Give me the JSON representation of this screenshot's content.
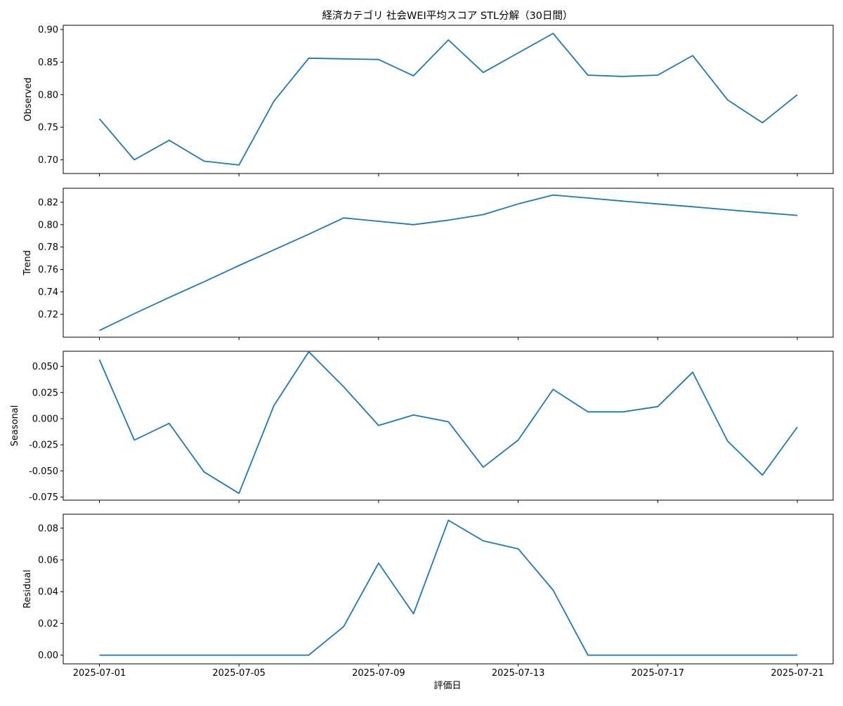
{
  "figure": {
    "title": "経済カテゴリ 社会WEI平均スコア STL分解（30日間）",
    "xlabel": "評価日"
  },
  "chart_data": {
    "type": "line",
    "title": "経済カテゴリ 社会WEI平均スコア STL分解（30日間）",
    "xlabel": "評価日",
    "x": [
      "2025-07-01",
      "2025-07-02",
      "2025-07-03",
      "2025-07-04",
      "2025-07-05",
      "2025-07-06",
      "2025-07-07",
      "2025-07-08",
      "2025-07-09",
      "2025-07-10",
      "2025-07-11",
      "2025-07-12",
      "2025-07-13",
      "2025-07-14",
      "2025-07-15",
      "2025-07-16",
      "2025-07-17",
      "2025-07-18",
      "2025-07-19",
      "2025-07-20",
      "2025-07-21"
    ],
    "x_ticks": [
      "2025-07-01",
      "2025-07-05",
      "2025-07-09",
      "2025-07-13",
      "2025-07-17",
      "2025-07-21"
    ],
    "line_color": "#1f77b4",
    "grid": false,
    "panels": [
      {
        "ylabel": "Observed",
        "ylim": [
          0.679,
          0.9065
        ],
        "yticks": [
          0.7,
          0.75,
          0.8,
          0.85,
          0.9
        ],
        "tick_format": 2,
        "values": [
          0.763,
          0.7,
          0.73,
          0.698,
          0.692,
          0.79,
          0.856,
          0.855,
          0.854,
          0.829,
          0.884,
          0.834,
          0.864,
          0.894,
          0.83,
          0.828,
          0.83,
          0.86,
          0.792,
          0.757,
          0.8
        ]
      },
      {
        "ylabel": "Trend",
        "ylim": [
          0.6995,
          0.8325
        ],
        "yticks": [
          0.72,
          0.74,
          0.76,
          0.78,
          0.8,
          0.82
        ],
        "tick_format": 2,
        "values": [
          0.7055,
          0.7205,
          0.735,
          0.749,
          0.7635,
          0.7775,
          0.7915,
          0.806,
          0.803,
          0.8,
          0.804,
          0.809,
          0.8185,
          0.8265,
          0.8238,
          0.821,
          0.8185,
          0.816,
          0.8133,
          0.8107,
          0.8083
        ]
      },
      {
        "ylabel": "Seasonal",
        "ylim": [
          -0.078,
          0.0645
        ],
        "yticks": [
          -0.075,
          -0.05,
          -0.025,
          0.0,
          0.025,
          0.05
        ],
        "tick_format": 3,
        "values": [
          0.0565,
          -0.0205,
          -0.0045,
          -0.051,
          -0.0715,
          0.0125,
          0.064,
          0.0305,
          -0.0065,
          0.0035,
          -0.003,
          -0.0465,
          -0.0205,
          0.028,
          0.0065,
          0.0065,
          0.0115,
          0.0445,
          -0.0215,
          -0.054,
          -0.008
        ]
      },
      {
        "ylabel": "Residual",
        "ylim": [
          -0.0055,
          0.0888
        ],
        "yticks": [
          0.0,
          0.02,
          0.04,
          0.06,
          0.08
        ],
        "tick_format": 2,
        "values": [
          0.0,
          0.0,
          0.0,
          0.0,
          0.0,
          0.0,
          0.0,
          0.018,
          0.058,
          0.026,
          0.085,
          0.072,
          0.067,
          0.041,
          0.0,
          0.0,
          0.0,
          0.0,
          0.0,
          0.0,
          0.0
        ]
      }
    ]
  }
}
